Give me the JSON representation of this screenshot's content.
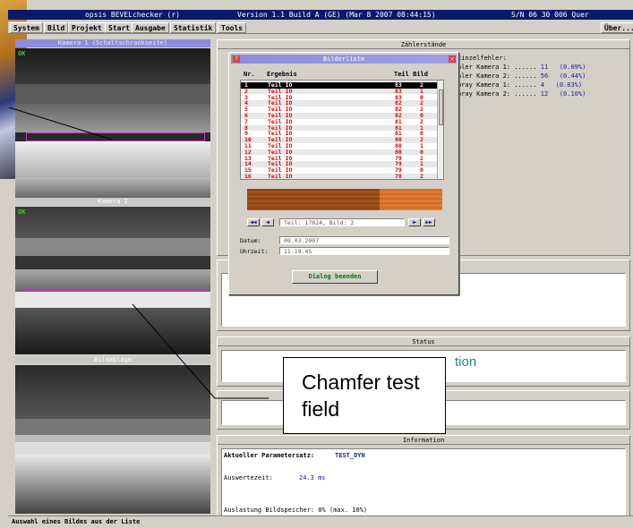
{
  "window": {
    "app_title": "opsis BEVELchecker (r)",
    "version": "Version 1.1 Build A (GE) (Mar  8 2007 08:44:15)",
    "serial": "S/N 06 30 006 Quer"
  },
  "menu": [
    "System",
    "Bild",
    "Projekt",
    "Start",
    "Ausgabe",
    "Statistik",
    "Tools"
  ],
  "menu_right": "Über...",
  "cameras": [
    {
      "header": "Kamera 1 (Schaltschrankseite)",
      "status": "OK"
    },
    {
      "header": "Kamera 2",
      "status": "OK"
    },
    {
      "header": "Bildablage",
      "status": ""
    }
  ],
  "zaehler": {
    "header": "Zählerstände",
    "einzelfehler_title": "Einzelfehler:",
    "rows": [
      {
        "label": "hler Kamera 1: ......",
        "count": "11",
        "pct": "(0.09%)"
      },
      {
        "label": "hler Kamera 2: ......",
        "count": "56",
        "pct": "(0.44%)"
      },
      {
        "label": "pray  Kamera 1: ......",
        "count": "4",
        "pct": "(0.03%)"
      },
      {
        "label": "pray  Kamera 2: ......",
        "count": "12",
        "pct": "(0.10%)"
      }
    ]
  },
  "status": {
    "header": "Status",
    "text": "tion"
  },
  "information": {
    "header": "Information",
    "paramset_label": "Aktueller Parametersatz:",
    "paramset_value": "TEST_DYN",
    "auswertezeit_label": "Auswertezeit:",
    "auswertezeit_value": "24.3 ms",
    "auslastung": "Auslastung Bildspeicher: 0% (max. 10%)"
  },
  "dialog": {
    "title": "Bilderliste",
    "columns": {
      "nr": "Nr.",
      "ergebnis": "Ergebnis",
      "teil_bild": "Teil Bild"
    },
    "rows": [
      {
        "nr": "1",
        "ergebnis": "Teil IO",
        "teil": "83",
        "bild": "2",
        "selected": true
      },
      {
        "nr": "2",
        "ergebnis": "Teil IO",
        "teil": "83",
        "bild": "1"
      },
      {
        "nr": "3",
        "ergebnis": "Teil IO",
        "teil": "83",
        "bild": "0"
      },
      {
        "nr": "4",
        "ergebnis": "Teil IO",
        "teil": "82",
        "bild": "2"
      },
      {
        "nr": "5",
        "ergebnis": "Teil IO",
        "teil": "82",
        "bild": "1"
      },
      {
        "nr": "6",
        "ergebnis": "Teil IO",
        "teil": "82",
        "bild": "0"
      },
      {
        "nr": "7",
        "ergebnis": "Teil IO",
        "teil": "81",
        "bild": "2"
      },
      {
        "nr": "8",
        "ergebnis": "Teil IO",
        "teil": "81",
        "bild": "1"
      },
      {
        "nr": "9",
        "ergebnis": "Teil IO",
        "teil": "81",
        "bild": "0"
      },
      {
        "nr": "10",
        "ergebnis": "Teil IO",
        "teil": "80",
        "bild": "2"
      },
      {
        "nr": "11",
        "ergebnis": "Teil IO",
        "teil": "80",
        "bild": "1"
      },
      {
        "nr": "12",
        "ergebnis": "Teil IO",
        "teil": "80",
        "bild": "0"
      },
      {
        "nr": "13",
        "ergebnis": "Teil IO",
        "teil": "79",
        "bild": "2"
      },
      {
        "nr": "14",
        "ergebnis": "Teil IO",
        "teil": "79",
        "bild": "1"
      },
      {
        "nr": "15",
        "ergebnis": "Teil IO",
        "teil": "79",
        "bild": "0"
      },
      {
        "nr": "16",
        "ergebnis": "Teil IO",
        "teil": "78",
        "bild": "2"
      }
    ],
    "nav_label": "Teil: 17024, Bild: 2",
    "datum_label": "Datum:",
    "datum_value": "09.03.2007",
    "uhrzeit_label": "Uhrzeit:",
    "uhrzeit_value": "11:19.45",
    "end_button": "Dialog beenden"
  },
  "callout": "Chamfer test field",
  "statusbar": "Auswahl eines Bildes aus der Liste",
  "colors": {
    "titlebar": "#0a1a6a",
    "row_text": "#e00000",
    "camera_header": "#8c8cdc"
  }
}
